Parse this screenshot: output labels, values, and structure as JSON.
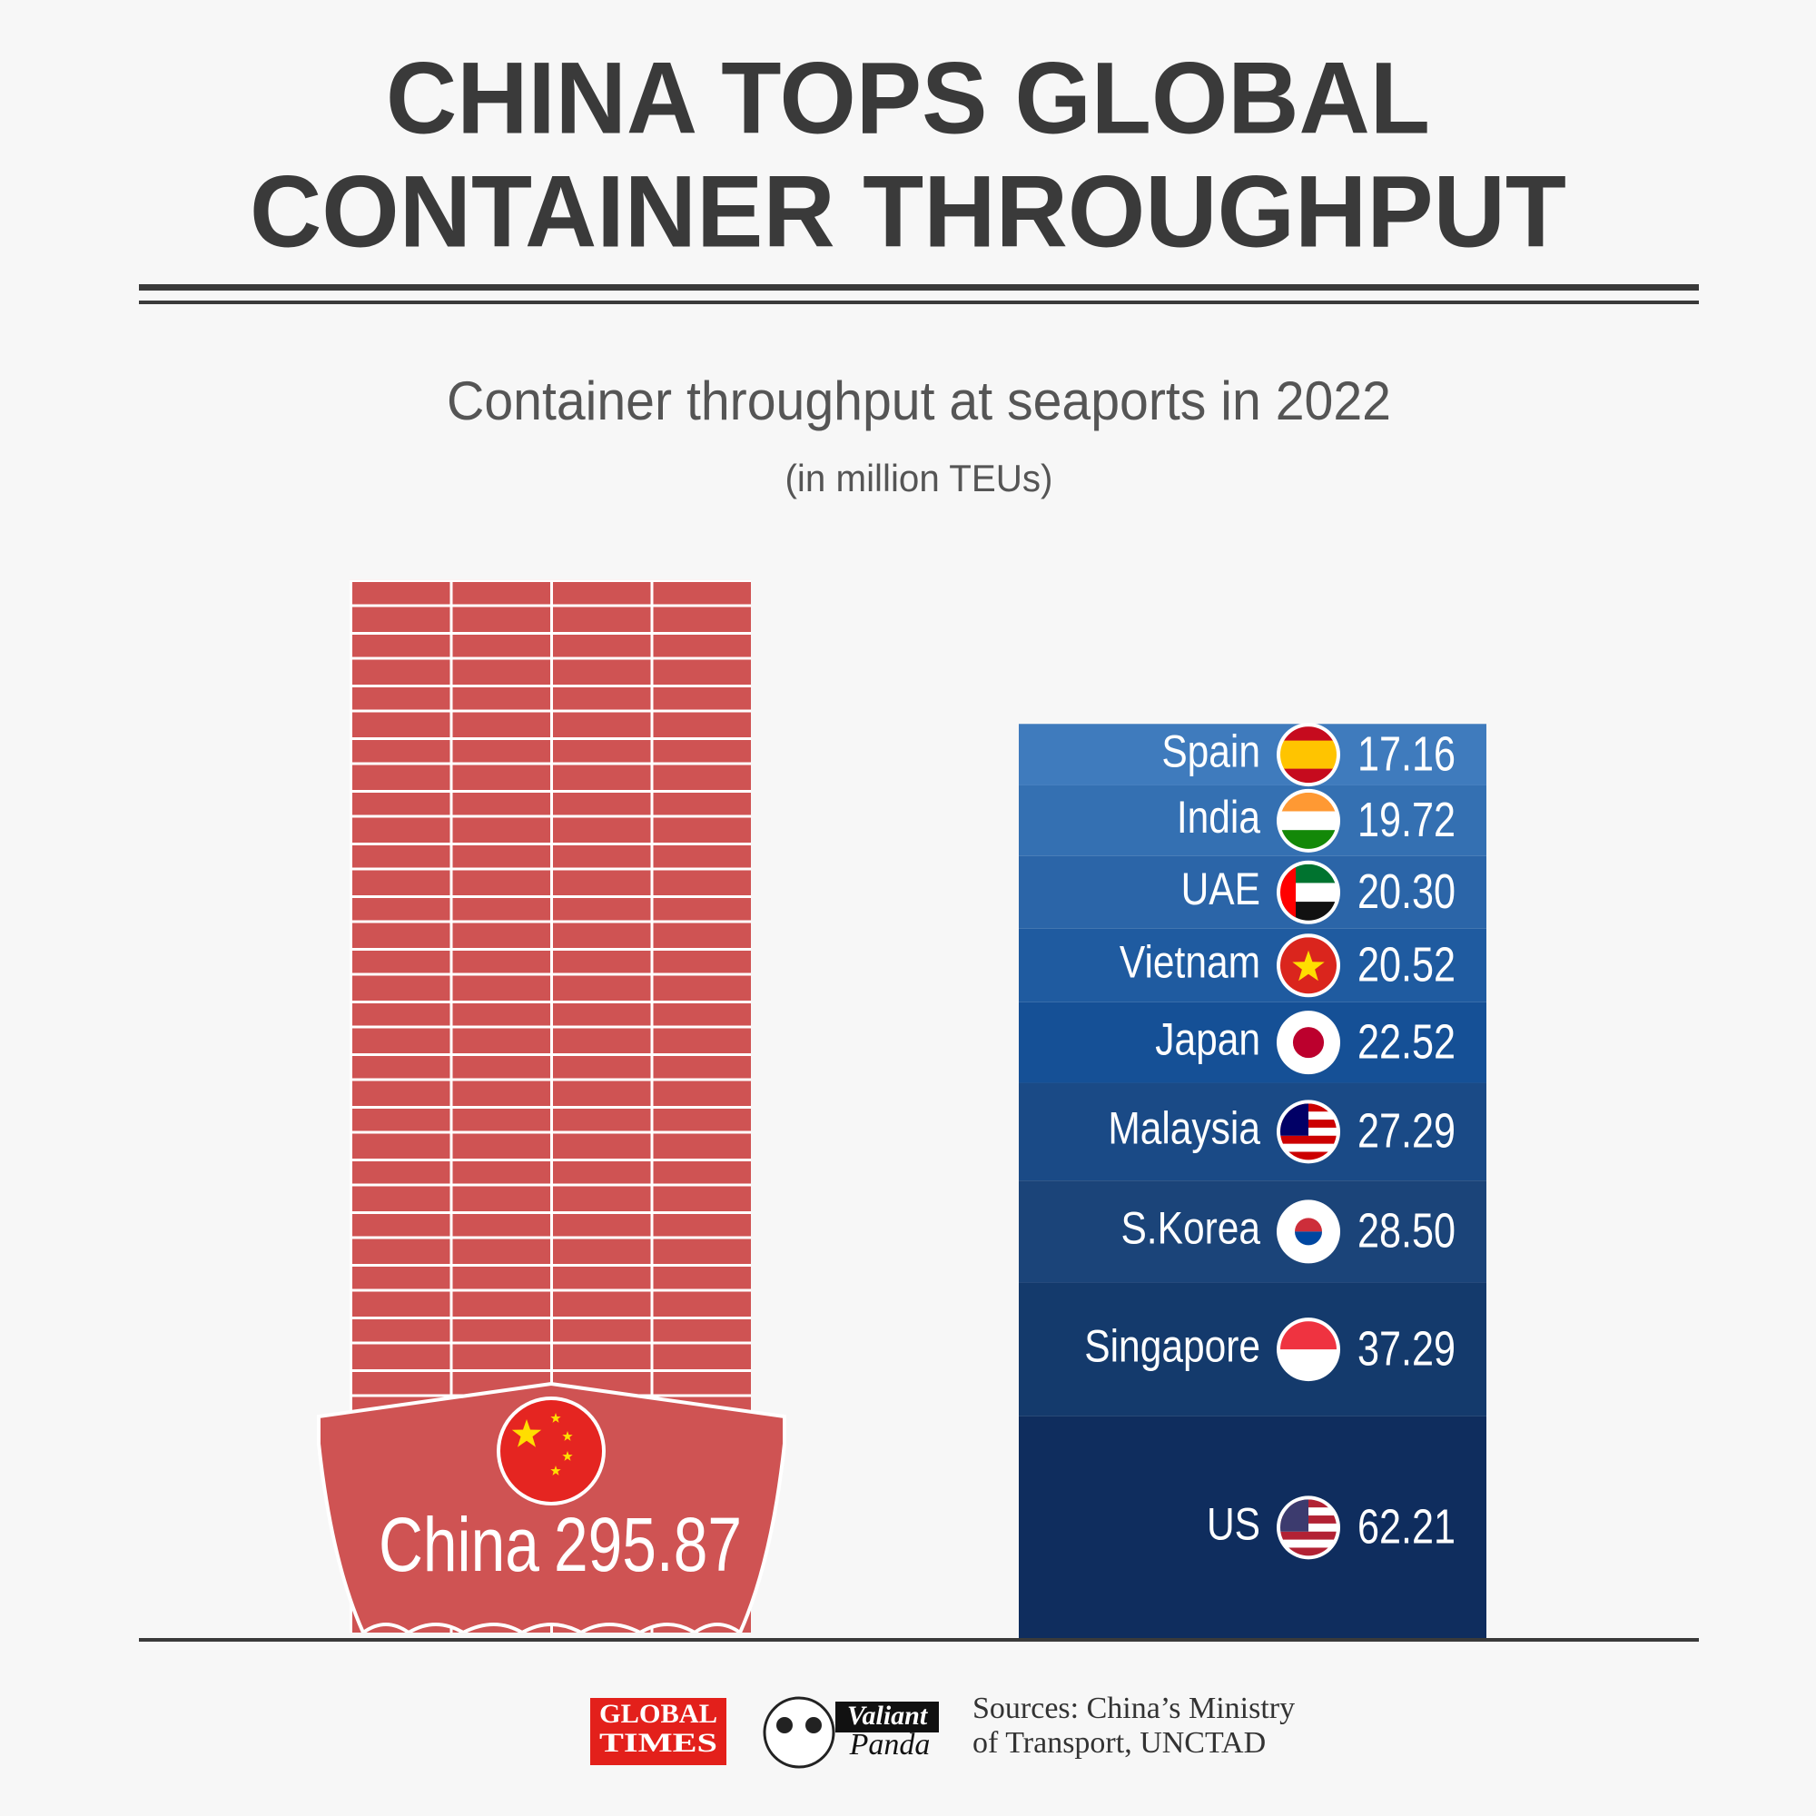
{
  "chart_data": {
    "type": "stacked-bar",
    "title": [
      "CHINA TOPS GLOBAL",
      "CONTAINER THROUGHPUT"
    ],
    "subtitle": "Container throughput at seaports in 2022",
    "unit": "(in million TEUs)",
    "china": {
      "name": "China",
      "value": 295.87,
      "color": "#cf5353"
    },
    "stack": {
      "categories": [
        "Spain",
        "India",
        "UAE",
        "Vietnam",
        "Japan",
        "Malaysia",
        "S.Korea",
        "Singapore",
        "US"
      ],
      "values": [
        17.16,
        19.72,
        20.3,
        20.52,
        22.52,
        27.29,
        28.5,
        37.29,
        62.21
      ],
      "value_labels": [
        "17.16",
        "19.72",
        "20.30",
        "20.52",
        "22.52",
        "27.29",
        "28.50",
        "37.29",
        "62.21"
      ],
      "colors": [
        "#3f7bbd",
        "#3470b2",
        "#2b65a8",
        "#1f5ba0",
        "#155096",
        "#1a4a86",
        "#1b4479",
        "#143a6c",
        "#0f2d5e"
      ]
    },
    "logos": {
      "global_times": [
        "GLOBAL",
        "TIMES"
      ],
      "valiant_panda": [
        "Valiant",
        "Panda"
      ]
    },
    "sources": [
      "Sources: China’s Ministry",
      "of Transport, UNCTAD"
    ]
  }
}
